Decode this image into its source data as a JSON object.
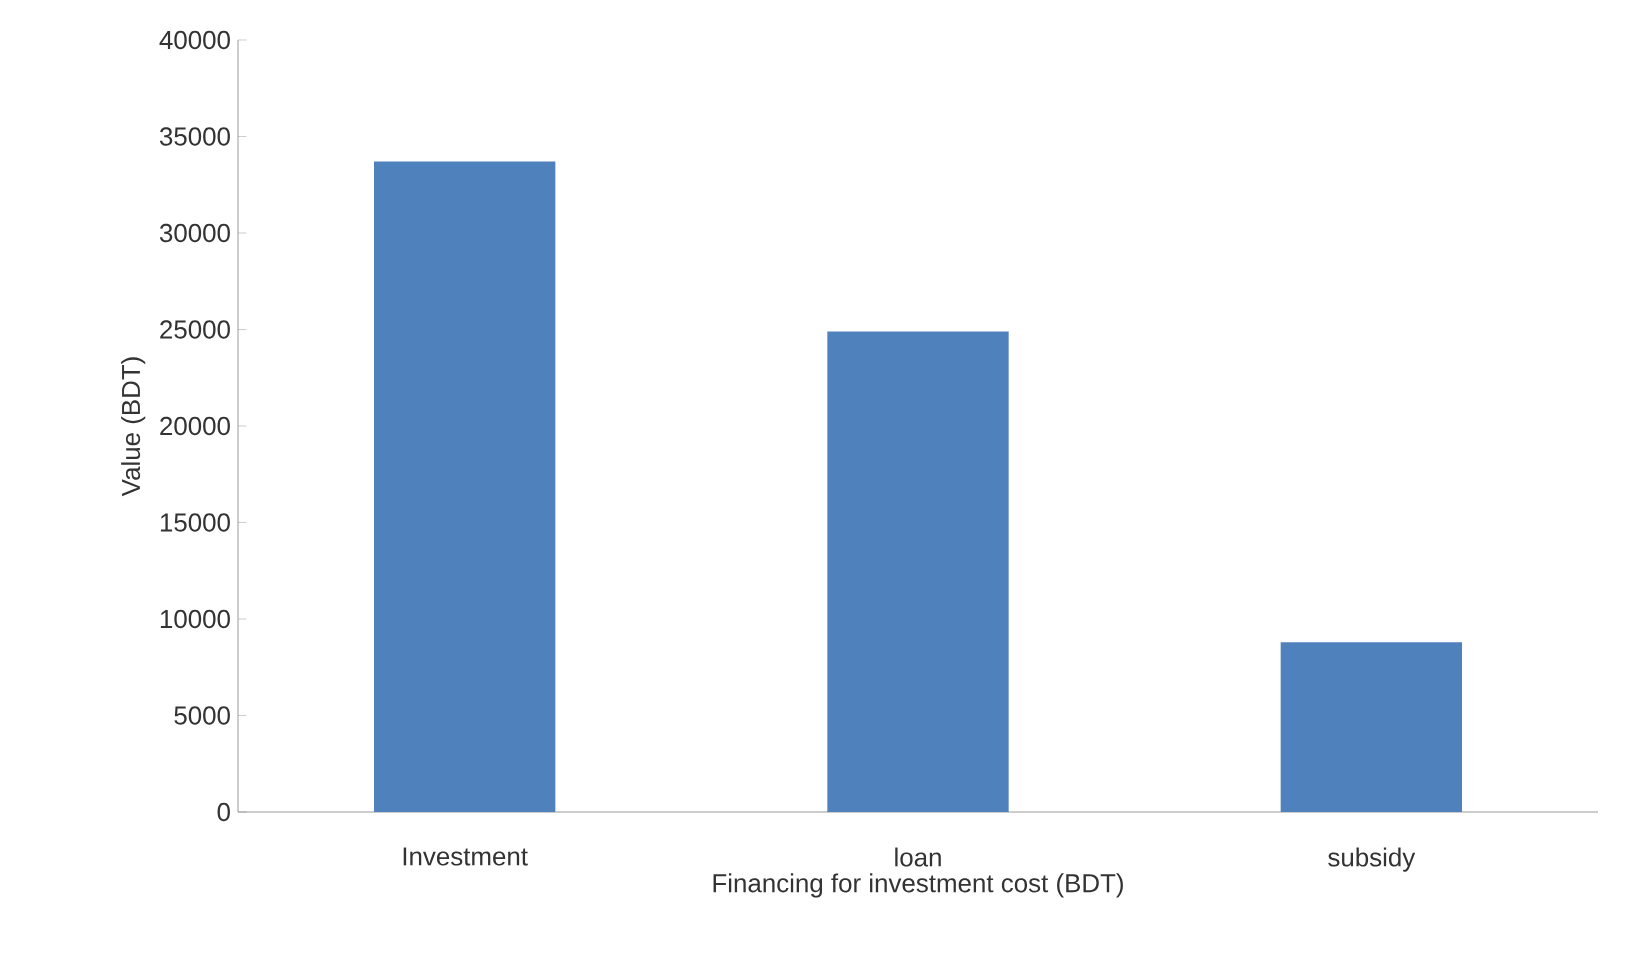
{
  "chart_data": {
    "type": "bar",
    "xlabel": "Financing for investment cost (BDT)",
    "ylabel": "Value (BDT)",
    "categories": [
      "Investment",
      "loan",
      "subsidy"
    ],
    "values": [
      33700,
      24900,
      8800
    ],
    "color": "#4f81bd",
    "ylim": [
      0,
      40000
    ],
    "yticks": [
      0,
      5000,
      10000,
      15000,
      20000,
      25000,
      30000,
      35000,
      40000
    ],
    "grid": false
  }
}
